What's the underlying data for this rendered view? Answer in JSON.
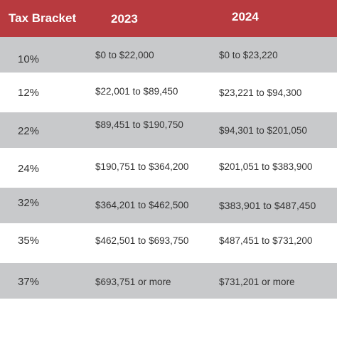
{
  "colors": {
    "header_bg": "#b83a3f",
    "row_shaded": "#c8c9cb",
    "row_plain": "#ffffff",
    "text": "#333333"
  },
  "header": {
    "col0": "Tax Bracket",
    "col1": "2023",
    "col2": "2024"
  },
  "rows": [
    {
      "rate": "10%",
      "y2023": "$0 to $22,000",
      "y2024": "$0 to $23,220"
    },
    {
      "rate": "12%",
      "y2023": "$22,001 to $89,450",
      "y2024": "$23,221 to $94,300"
    },
    {
      "rate": "22%",
      "y2023": "$89,451 to $190,750",
      "y2024": "$94,301 to $201,050"
    },
    {
      "rate": "24%",
      "y2023": "$190,751 to $364,200",
      "y2024": "$201,051 to $383,900"
    },
    {
      "rate": "32%",
      "y2023": "$364,201 to $462,500",
      "y2024": "$383,901 to $487,450"
    },
    {
      "rate": "35%",
      "y2023": "$462,501 to $693,750",
      "y2024": "$487,451 to $731,200"
    },
    {
      "rate": "37%",
      "y2023": "$693,751 or more",
      "y2024": "$731,201 or more"
    }
  ]
}
